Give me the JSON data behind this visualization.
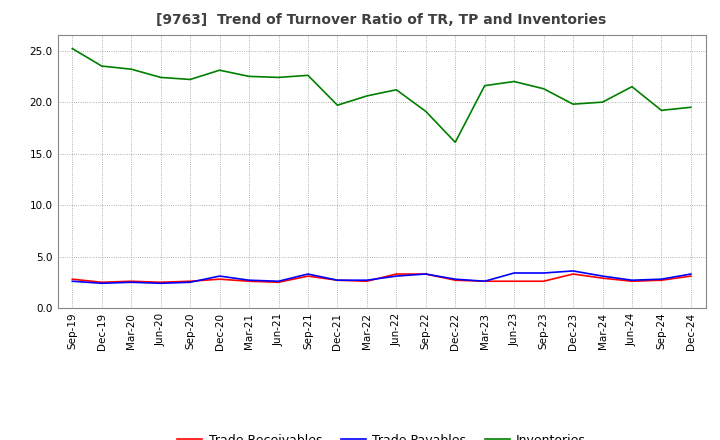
{
  "title": "[9763]  Trend of Turnover Ratio of TR, TP and Inventories",
  "x_labels": [
    "Sep-19",
    "Dec-19",
    "Mar-20",
    "Jun-20",
    "Sep-20",
    "Dec-20",
    "Mar-21",
    "Jun-21",
    "Sep-21",
    "Dec-21",
    "Mar-22",
    "Jun-22",
    "Sep-22",
    "Dec-22",
    "Mar-23",
    "Jun-23",
    "Sep-23",
    "Dec-23",
    "Mar-24",
    "Jun-24",
    "Sep-24",
    "Dec-24"
  ],
  "trade_receivables": [
    2.8,
    2.5,
    2.6,
    2.5,
    2.6,
    2.8,
    2.6,
    2.5,
    3.1,
    2.7,
    2.6,
    3.3,
    3.3,
    2.7,
    2.6,
    2.6,
    2.6,
    3.3,
    2.9,
    2.6,
    2.7,
    3.1
  ],
  "trade_payables": [
    2.6,
    2.4,
    2.5,
    2.4,
    2.5,
    3.1,
    2.7,
    2.6,
    3.3,
    2.7,
    2.7,
    3.1,
    3.3,
    2.8,
    2.6,
    3.4,
    3.4,
    3.6,
    3.1,
    2.7,
    2.8,
    3.3
  ],
  "inventories": [
    25.2,
    23.5,
    23.2,
    22.4,
    22.2,
    23.1,
    22.5,
    22.4,
    22.6,
    19.7,
    20.6,
    21.2,
    19.1,
    16.1,
    21.6,
    22.0,
    21.3,
    19.8,
    20.0,
    21.5,
    19.2,
    19.5
  ],
  "tr_color": "#ff0000",
  "tp_color": "#0000ff",
  "inv_color": "#008000",
  "ylim": [
    0,
    26.5
  ],
  "yticks": [
    0.0,
    5.0,
    10.0,
    15.0,
    20.0,
    25.0
  ],
  "background_color": "#ffffff",
  "grid_color": "#999999",
  "title_color": "#404040",
  "title_fontsize": 10,
  "tick_fontsize": 7.5,
  "legend_fontsize": 9
}
